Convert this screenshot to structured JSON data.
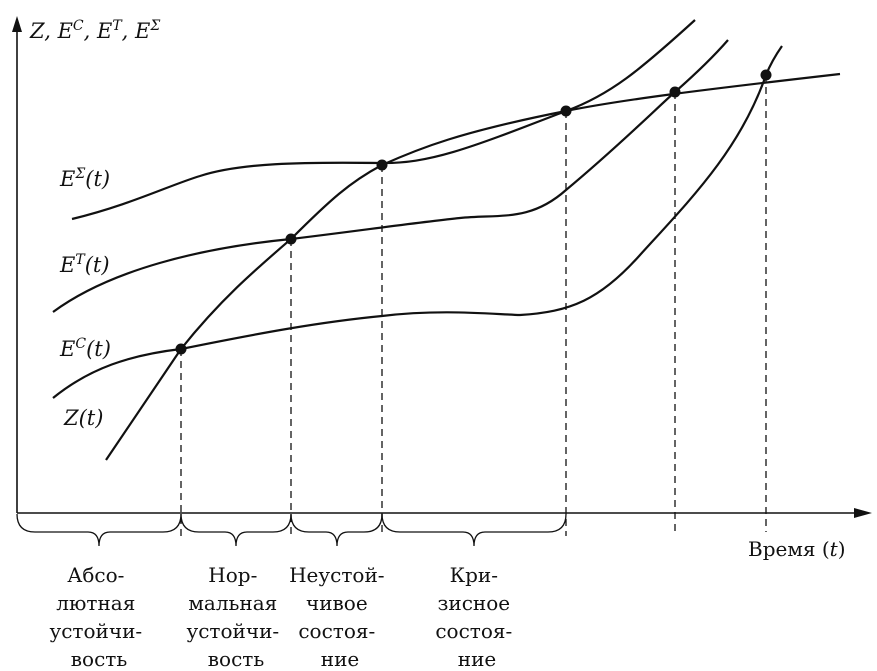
{
  "axes": {
    "y_label": "Z, E^C, E^T, E^Σ",
    "y_label_parts": [
      "Z, E",
      "C",
      ", E",
      "T",
      ", E",
      "Σ"
    ],
    "x_label": "Время (t)",
    "x_label_parts": [
      "Время (",
      "t",
      ")"
    ]
  },
  "curves": {
    "sum": {
      "main": "E",
      "sup": "Σ",
      "arg": "(t)"
    },
    "t": {
      "main": "E",
      "sup": "T",
      "arg": "(t)"
    },
    "c": {
      "main": "E",
      "sup": "C",
      "arg": "(t)"
    },
    "z": {
      "main": "Z",
      "arg": "(t)"
    }
  },
  "zones": [
    {
      "lines": [
        "Абсо-",
        "лютная",
        "устойчи-",
        "вость"
      ]
    },
    {
      "lines": [
        "Нор-",
        "мальная",
        "устойчи-",
        "вость"
      ]
    },
    {
      "lines": [
        "Неустой-",
        "чивое",
        "состоя-",
        "ние"
      ]
    },
    {
      "lines": [
        "Кри-",
        "зисное",
        "состоя-",
        "ние"
      ]
    }
  ],
  "colors": {
    "ink": "#111111",
    "background": "#ffffff"
  }
}
